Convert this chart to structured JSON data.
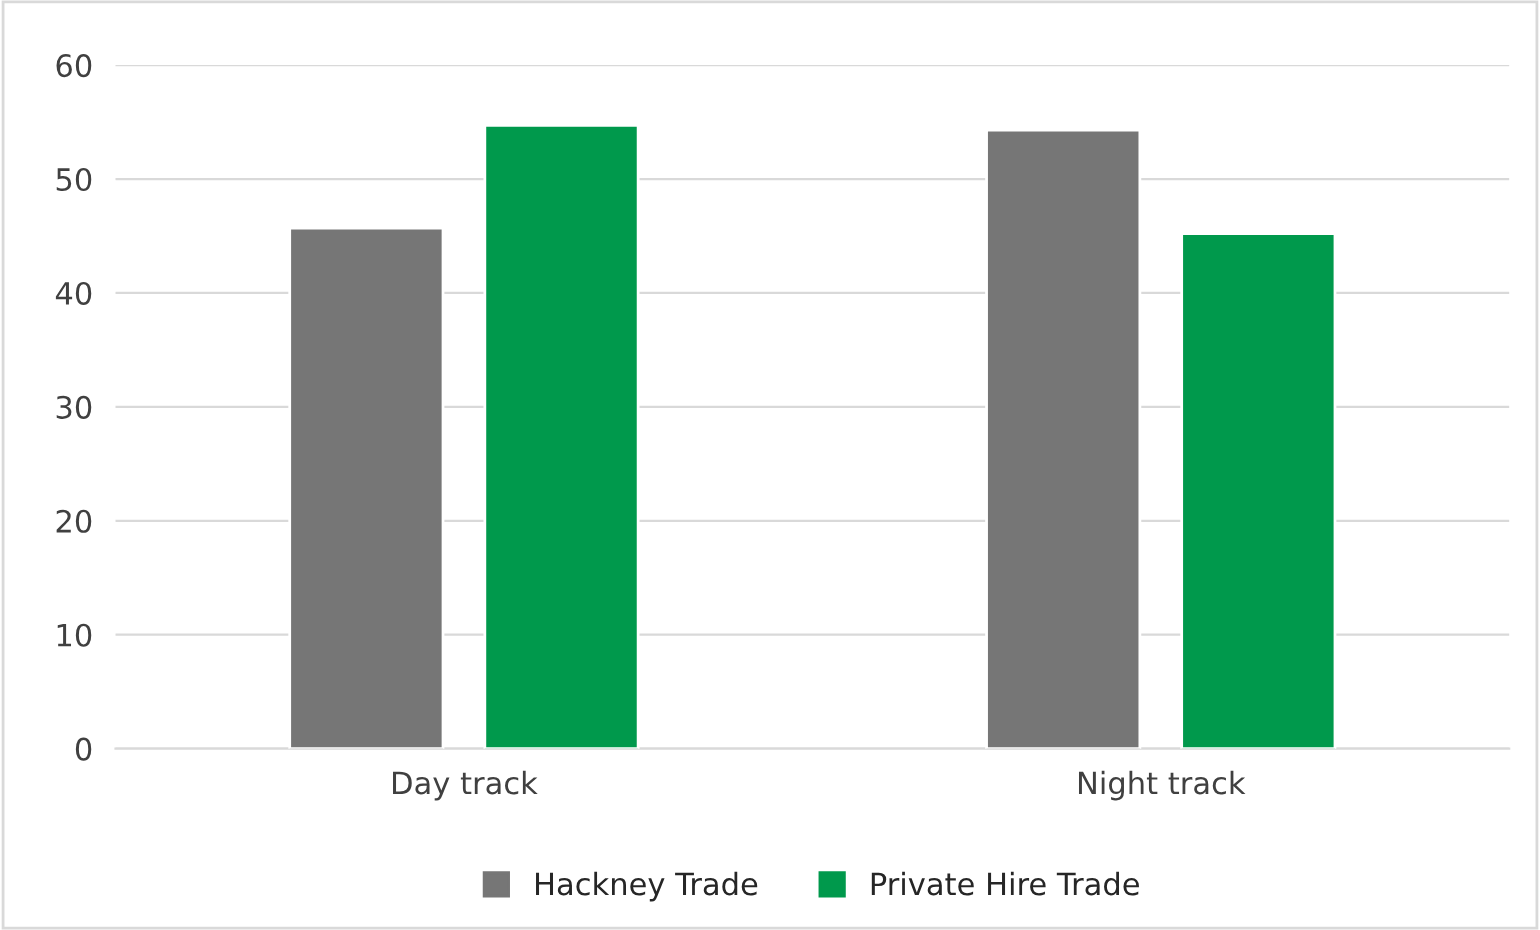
{
  "chart_data": {
    "type": "bar",
    "categories": [
      "Day track",
      "Night track"
    ],
    "series": [
      {
        "name": "Hackney Trade",
        "color": "#767676",
        "values": [
          45.7,
          54.3
        ]
      },
      {
        "name": "Private Hire Trade",
        "color": "#00994c",
        "values": [
          54.7,
          45.2
        ]
      }
    ],
    "ylim": [
      0,
      60
    ],
    "yticks": [
      0,
      10,
      20,
      30,
      40,
      50,
      60
    ],
    "grid": "y",
    "legend": "bottom"
  }
}
